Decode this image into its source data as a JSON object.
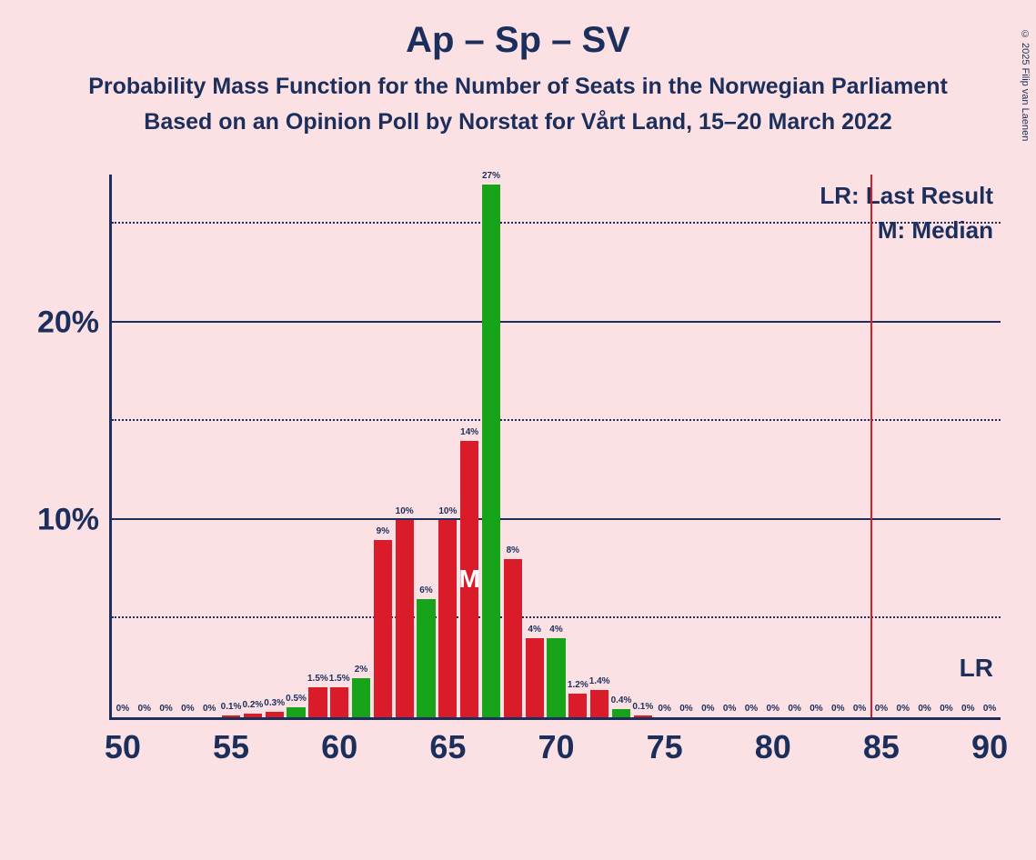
{
  "title": "Ap – Sp – SV",
  "subtitle_1": "Probability Mass Function for the Number of Seats in the Norwegian Parliament",
  "subtitle_2": "Based on an Opinion Poll by Norstat for Vårt Land, 15–20 March 2022",
  "legend_lr": "LR: Last Result",
  "legend_m": "M: Median",
  "lr_tag": "LR",
  "copyright": "© 2025 Filip van Laenen",
  "chart": {
    "type": "bar",
    "background_color": "#fbe1e3",
    "axis_color": "#1b2e5c",
    "text_color": "#1b2e5c",
    "colors": {
      "red": "#d91b2a",
      "green": "#17a31a"
    },
    "title_fontsize": 40,
    "subtitle_fontsize": 25,
    "legend_fontsize": 26,
    "axis_label_fontsize": 36,
    "median_char": "M",
    "median_seat": 66,
    "last_result_seat": 85,
    "xlim": [
      49.5,
      90.5
    ],
    "ylim": [
      0,
      27.5
    ],
    "x_ticks": [
      50,
      55,
      60,
      65,
      70,
      75,
      80,
      85,
      90
    ],
    "x_tick_labels": [
      "50",
      "55",
      "60",
      "65",
      "70",
      "75",
      "80",
      "85",
      "90"
    ],
    "y_ticks_labeled": [
      10,
      20
    ],
    "y_tick_labels": [
      "10%",
      "20%"
    ],
    "y_gridlines_dotted": [
      5,
      15,
      25
    ],
    "bar_width": 0.85,
    "bars": [
      {
        "seat": 50,
        "value": 0,
        "label": "0%",
        "color": "red"
      },
      {
        "seat": 51,
        "value": 0,
        "label": "0%",
        "color": "red"
      },
      {
        "seat": 52,
        "value": 0,
        "label": "0%",
        "color": "red"
      },
      {
        "seat": 53,
        "value": 0,
        "label": "0%",
        "color": "red"
      },
      {
        "seat": 54,
        "value": 0,
        "label": "0%",
        "color": "red"
      },
      {
        "seat": 55,
        "value": 0.1,
        "label": "0.1%",
        "color": "red"
      },
      {
        "seat": 56,
        "value": 0.2,
        "label": "0.2%",
        "color": "red"
      },
      {
        "seat": 57,
        "value": 0.3,
        "label": "0.3%",
        "color": "red"
      },
      {
        "seat": 58,
        "value": 0.5,
        "label": "0.5%",
        "color": "green"
      },
      {
        "seat": 59,
        "value": 1.5,
        "label": "1.5%",
        "color": "red"
      },
      {
        "seat": 60,
        "value": 1.5,
        "label": "1.5%",
        "color": "red"
      },
      {
        "seat": 61,
        "value": 2,
        "label": "2%",
        "color": "green"
      },
      {
        "seat": 62,
        "value": 9,
        "label": "9%",
        "color": "red"
      },
      {
        "seat": 63,
        "value": 10,
        "label": "10%",
        "color": "red"
      },
      {
        "seat": 64,
        "value": 6,
        "label": "6%",
        "color": "green"
      },
      {
        "seat": 65,
        "value": 10,
        "label": "10%",
        "color": "red"
      },
      {
        "seat": 66,
        "value": 14,
        "label": "14%",
        "color": "red"
      },
      {
        "seat": 67,
        "value": 27,
        "label": "27%",
        "color": "green"
      },
      {
        "seat": 68,
        "value": 8,
        "label": "8%",
        "color": "red"
      },
      {
        "seat": 69,
        "value": 4,
        "label": "4%",
        "color": "red"
      },
      {
        "seat": 70,
        "value": 4,
        "label": "4%",
        "color": "green"
      },
      {
        "seat": 71,
        "value": 1.2,
        "label": "1.2%",
        "color": "red"
      },
      {
        "seat": 72,
        "value": 1.4,
        "label": "1.4%",
        "color": "red"
      },
      {
        "seat": 73,
        "value": 0.4,
        "label": "0.4%",
        "color": "green"
      },
      {
        "seat": 74,
        "value": 0.1,
        "label": "0.1%",
        "color": "red"
      },
      {
        "seat": 75,
        "value": 0,
        "label": "0%",
        "color": "red"
      },
      {
        "seat": 76,
        "value": 0,
        "label": "0%",
        "color": "red"
      },
      {
        "seat": 77,
        "value": 0,
        "label": "0%",
        "color": "red"
      },
      {
        "seat": 78,
        "value": 0,
        "label": "0%",
        "color": "red"
      },
      {
        "seat": 79,
        "value": 0,
        "label": "0%",
        "color": "red"
      },
      {
        "seat": 80,
        "value": 0,
        "label": "0%",
        "color": "red"
      },
      {
        "seat": 81,
        "value": 0,
        "label": "0%",
        "color": "red"
      },
      {
        "seat": 82,
        "value": 0,
        "label": "0%",
        "color": "red"
      },
      {
        "seat": 83,
        "value": 0,
        "label": "0%",
        "color": "red"
      },
      {
        "seat": 84,
        "value": 0,
        "label": "0%",
        "color": "red"
      },
      {
        "seat": 85,
        "value": 0,
        "label": "0%",
        "color": "red"
      },
      {
        "seat": 86,
        "value": 0,
        "label": "0%",
        "color": "red"
      },
      {
        "seat": 87,
        "value": 0,
        "label": "0%",
        "color": "red"
      },
      {
        "seat": 88,
        "value": 0,
        "label": "0%",
        "color": "red"
      },
      {
        "seat": 89,
        "value": 0,
        "label": "0%",
        "color": "red"
      },
      {
        "seat": 90,
        "value": 0,
        "label": "0%",
        "color": "red"
      }
    ]
  }
}
